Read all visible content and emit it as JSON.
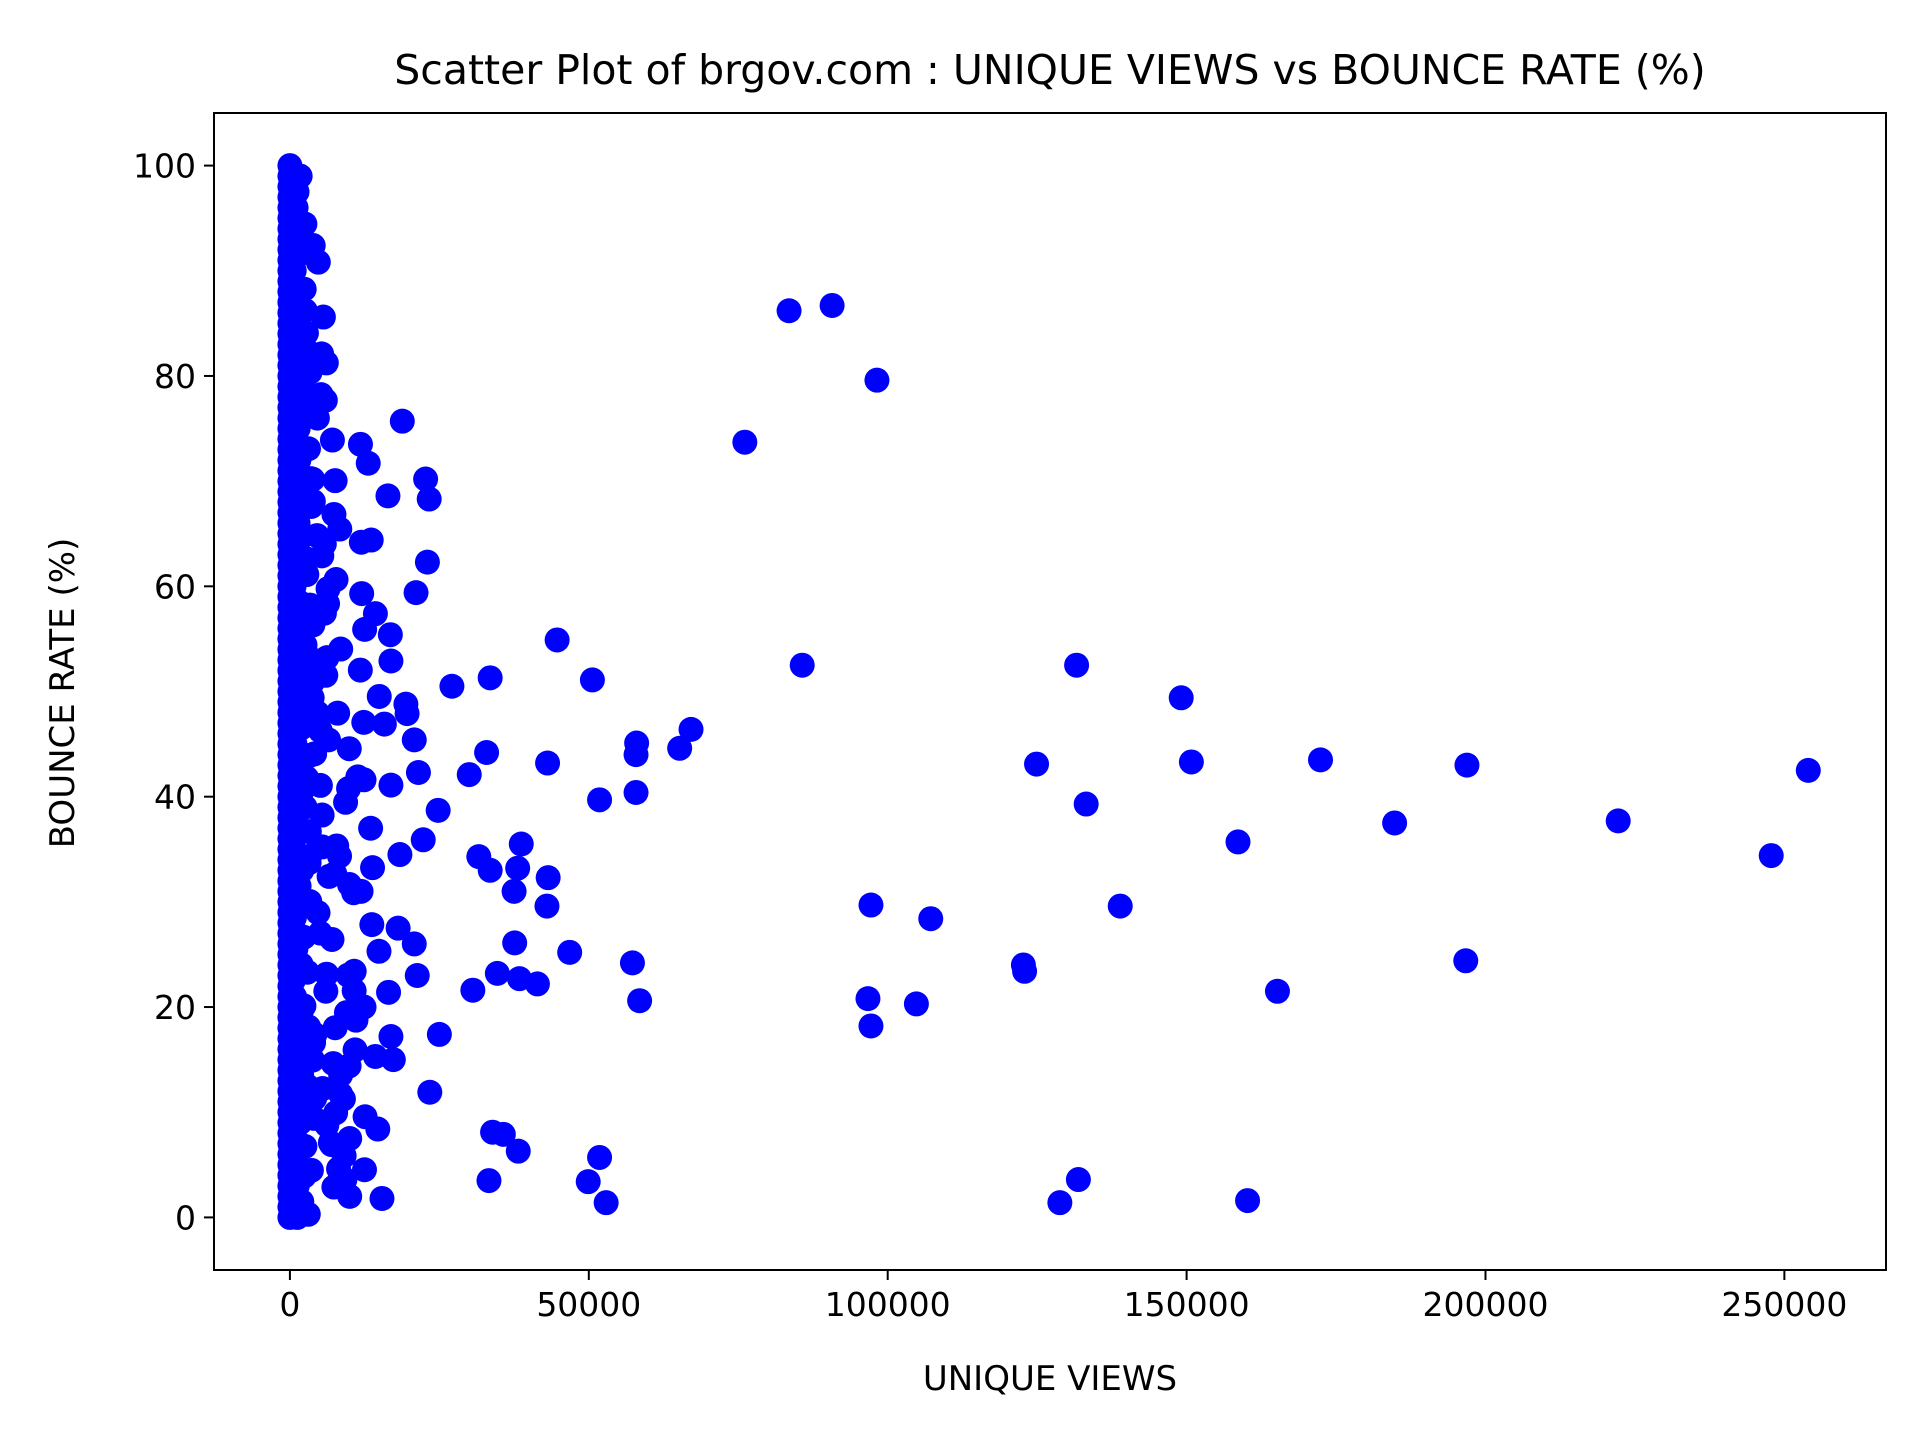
{
  "chart_data": {
    "type": "scatter",
    "title": "Scatter Plot of brgov.com : UNIQUE VIEWS vs BOUNCE RATE (%)",
    "xlabel": "UNIQUE VIEWS",
    "ylabel": "BOUNCE RATE (%)",
    "xlim": [
      -12700,
      267000
    ],
    "ylim": [
      -5,
      105
    ],
    "xticks": [
      0,
      50000,
      100000,
      150000,
      200000,
      250000
    ],
    "xtick_labels": [
      "0",
      "50000",
      "100000",
      "150000",
      "200000",
      "250000"
    ],
    "yticks": [
      0,
      20,
      40,
      60,
      80,
      100
    ],
    "ytick_labels": [
      "0",
      "20",
      "40",
      "60",
      "80",
      "100"
    ],
    "grid": false,
    "legend": "none",
    "marker_color": "#0000ff",
    "series": [
      {
        "color": "#0000ff",
        "points": [
          [
            83500,
            86.2
          ],
          [
            90700,
            86.7
          ],
          [
            98200,
            79.6
          ],
          [
            76100,
            73.7
          ],
          [
            18800,
            75.7
          ],
          [
            3900,
            92.4
          ],
          [
            5600,
            85.6
          ],
          [
            5300,
            82.1
          ],
          [
            11800,
            73.5
          ],
          [
            13100,
            71.7
          ],
          [
            22700,
            70.2
          ],
          [
            23300,
            68.3
          ],
          [
            16400,
            68.6
          ],
          [
            13600,
            64.4
          ],
          [
            23000,
            62.3
          ],
          [
            21100,
            59.4
          ],
          [
            14300,
            57.4
          ],
          [
            16800,
            55.4
          ],
          [
            44700,
            54.9
          ],
          [
            16900,
            52.9
          ],
          [
            85700,
            52.5
          ],
          [
            131600,
            52.5
          ],
          [
            33500,
            51.3
          ],
          [
            50600,
            51.1
          ],
          [
            27100,
            50.5
          ],
          [
            149100,
            49.4
          ],
          [
            19400,
            48.8
          ],
          [
            19600,
            47.9
          ],
          [
            67100,
            46.4
          ],
          [
            15800,
            46.9
          ],
          [
            58000,
            45.1
          ],
          [
            20800,
            45.4
          ],
          [
            65200,
            44.6
          ],
          [
            57900,
            44.0
          ],
          [
            32900,
            44.2
          ],
          [
            43100,
            43.2
          ],
          [
            124900,
            43.1
          ],
          [
            150800,
            43.3
          ],
          [
            172400,
            43.5
          ],
          [
            196900,
            43.0
          ],
          [
            254000,
            42.5
          ],
          [
            21500,
            42.3
          ],
          [
            30000,
            42.1
          ],
          [
            16900,
            41.1
          ],
          [
            51800,
            39.7
          ],
          [
            57900,
            40.4
          ],
          [
            133200,
            39.3
          ],
          [
            24800,
            38.7
          ],
          [
            158600,
            35.7
          ],
          [
            184800,
            37.5
          ],
          [
            222200,
            37.7
          ],
          [
            247800,
            34.4
          ],
          [
            13500,
            37.0
          ],
          [
            38700,
            35.5
          ],
          [
            22300,
            35.9
          ],
          [
            18400,
            34.5
          ],
          [
            31600,
            34.3
          ],
          [
            33500,
            33.0
          ],
          [
            38100,
            33.2
          ],
          [
            43200,
            32.3
          ],
          [
            37500,
            31.0
          ],
          [
            43000,
            29.6
          ],
          [
            97200,
            29.7
          ],
          [
            107200,
            28.4
          ],
          [
            138900,
            29.6
          ],
          [
            18100,
            27.5
          ],
          [
            37600,
            26.1
          ],
          [
            20800,
            26.0
          ],
          [
            46800,
            25.2
          ],
          [
            14900,
            25.3
          ],
          [
            57300,
            24.2
          ],
          [
            122700,
            24.0
          ],
          [
            122900,
            23.4
          ],
          [
            196700,
            24.4
          ],
          [
            21300,
            23.0
          ],
          [
            34700,
            23.2
          ],
          [
            38400,
            22.7
          ],
          [
            41400,
            22.2
          ],
          [
            30600,
            21.6
          ],
          [
            16500,
            21.4
          ],
          [
            165200,
            21.5
          ],
          [
            96700,
            20.8
          ],
          [
            58500,
            20.6
          ],
          [
            104800,
            20.3
          ],
          [
            97200,
            18.2
          ],
          [
            16900,
            17.2
          ],
          [
            25000,
            17.4
          ],
          [
            17300,
            15.0
          ],
          [
            14300,
            15.3
          ],
          [
            23400,
            11.9
          ],
          [
            14700,
            8.4
          ],
          [
            33900,
            8.1
          ],
          [
            35700,
            7.9
          ],
          [
            38200,
            6.3
          ],
          [
            51800,
            5.7
          ],
          [
            33300,
            3.5
          ],
          [
            49900,
            3.4
          ],
          [
            52900,
            1.4
          ],
          [
            128800,
            1.4
          ],
          [
            131900,
            3.6
          ],
          [
            160200,
            1.6
          ],
          [
            15400,
            1.8
          ],
          [
            10000,
            2.0
          ],
          [
            11900,
            31.0
          ],
          [
            12400,
            20.0
          ],
          [
            9900,
            14.4
          ],
          [
            10000,
            7.5
          ],
          [
            8500,
            11.7
          ],
          [
            9200,
            3.6
          ]
        ]
      }
    ]
  }
}
